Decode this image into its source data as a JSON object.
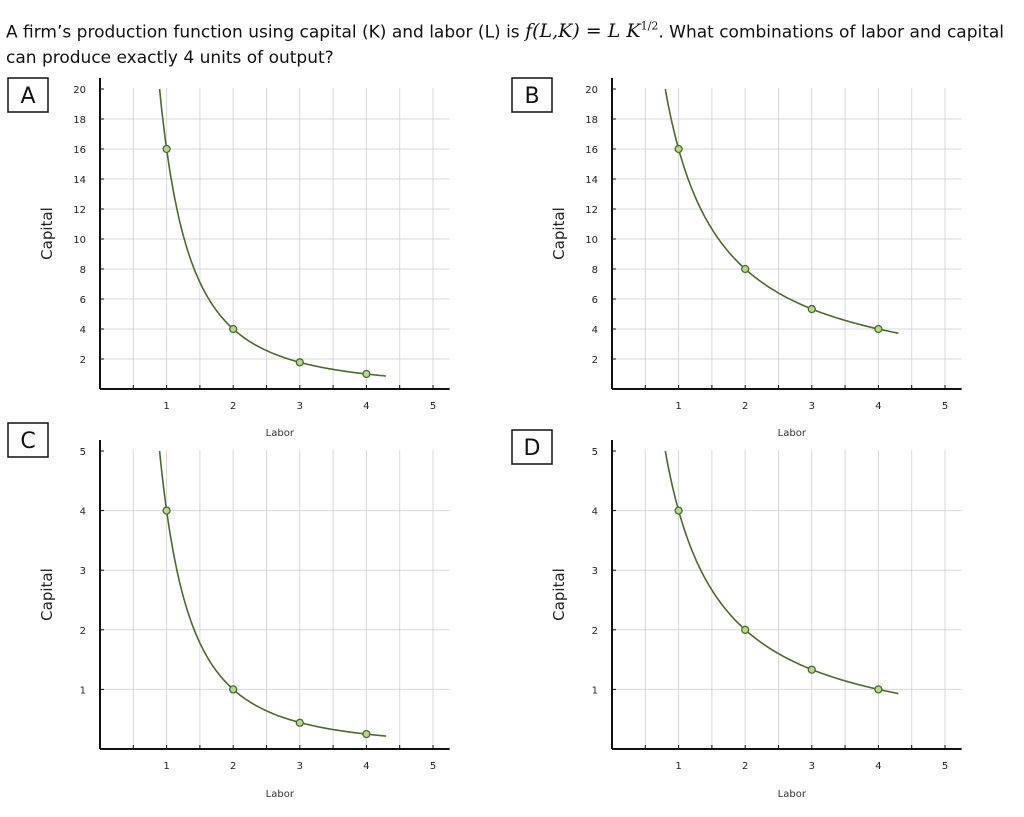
{
  "question": {
    "before": "A firm’s production function using capital (K) and labor (L) is ",
    "formula_lhs": "f(L,K) = L K",
    "formula_exp": "1/2",
    "after": ". What combinations of labor and capital can produce exactly 4 units of output?"
  },
  "colors": {
    "curve": "#4a6b2a",
    "point_fill": "#b5d88a",
    "grid": "#d8d8d8",
    "axis": "#111111"
  },
  "chart_data": [
    {
      "type": "line",
      "option": "A",
      "xlabel": "Labor",
      "ylabel": "Capital",
      "xlim": [
        0,
        5
      ],
      "ylim": [
        0,
        20
      ],
      "xticks": [
        1,
        2,
        3,
        4,
        5
      ],
      "yticks": [
        2,
        4,
        6,
        8,
        10,
        12,
        14,
        16,
        18,
        20
      ],
      "grid": true,
      "x": [
        1,
        2,
        3,
        4
      ],
      "y": [
        16,
        4,
        1.78,
        1
      ],
      "curve": {
        "coef": 16,
        "power": 2
      }
    },
    {
      "type": "line",
      "option": "B",
      "xlabel": "Labor",
      "ylabel": "Capital",
      "xlim": [
        0,
        5
      ],
      "ylim": [
        0,
        20
      ],
      "xticks": [
        1,
        2,
        3,
        4,
        5
      ],
      "yticks": [
        2,
        4,
        6,
        8,
        10,
        12,
        14,
        16,
        18,
        20
      ],
      "grid": true,
      "x": [
        1,
        2,
        3,
        4
      ],
      "y": [
        16,
        8,
        5.33,
        4
      ],
      "curve": {
        "coef": 16,
        "power": 1
      }
    },
    {
      "type": "line",
      "option": "C",
      "xlabel": "Labor",
      "ylabel": "Capital",
      "xlim": [
        0,
        5
      ],
      "ylim": [
        0,
        5
      ],
      "xticks": [
        1,
        2,
        3,
        4,
        5
      ],
      "yticks": [
        1,
        2,
        3,
        4,
        5
      ],
      "grid": true,
      "x": [
        1,
        2,
        3,
        4
      ],
      "y": [
        4,
        1,
        0.44,
        0.25
      ],
      "curve": {
        "coef": 4,
        "power": 2
      }
    },
    {
      "type": "line",
      "option": "D",
      "xlabel": "Labor",
      "ylabel": "Capital",
      "xlim": [
        0,
        5
      ],
      "ylim": [
        0,
        5
      ],
      "xticks": [
        1,
        2,
        3,
        4,
        5
      ],
      "yticks": [
        1,
        2,
        3,
        4,
        5
      ],
      "grid": true,
      "x": [
        1,
        2,
        3,
        4
      ],
      "y": [
        4,
        2,
        1.33,
        1
      ],
      "curve": {
        "coef": 4,
        "power": 1
      }
    }
  ]
}
